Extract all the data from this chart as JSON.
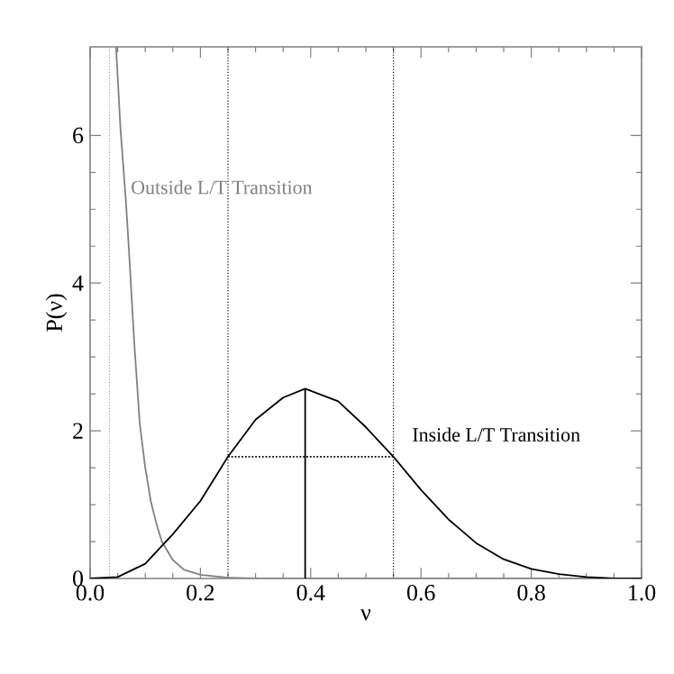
{
  "chart_data": {
    "type": "line",
    "xlabel": "ν",
    "ylabel": "P(ν)",
    "xlim": [
      0,
      1
    ],
    "ylim": [
      0,
      7.2
    ],
    "xticks": [
      {
        "value": 0,
        "label": "0.0"
      },
      {
        "value": 0.2,
        "label": "0.2"
      },
      {
        "value": 0.4,
        "label": "0.4"
      },
      {
        "value": 0.6,
        "label": "0.6"
      },
      {
        "value": 0.8,
        "label": "0.8"
      },
      {
        "value": 1,
        "label": "1.0"
      }
    ],
    "yticks": [
      0,
      2,
      4,
      6
    ],
    "grid": false,
    "legend": false,
    "marker": "none",
    "series": [
      {
        "name": "Outside L/T Transition",
        "color": "#808080",
        "line_style": "solid",
        "x": [
          0.047,
          0.05,
          0.055,
          0.06,
          0.065,
          0.07,
          0.08,
          0.09,
          0.1,
          0.11,
          0.12,
          0.13,
          0.15,
          0.17,
          0.2,
          0.25,
          0.3,
          0.4,
          0.6,
          0.8,
          1.0
        ],
        "values": [
          7.2,
          6.8,
          6.1,
          5.6,
          5.1,
          4.5,
          3.2,
          2.1,
          1.5,
          1.05,
          0.75,
          0.5,
          0.25,
          0.12,
          0.05,
          0.01,
          0.0,
          0.0,
          0.0,
          0.0,
          0.0
        ]
      },
      {
        "name": "Inside L/T Transition",
        "color": "#000000",
        "line_style": "solid",
        "x": [
          0.0,
          0.05,
          0.1,
          0.13,
          0.15,
          0.2,
          0.25,
          0.3,
          0.35,
          0.39,
          0.45,
          0.5,
          0.55,
          0.6,
          0.65,
          0.7,
          0.75,
          0.8,
          0.85,
          0.9,
          0.95,
          1.0
        ],
        "values": [
          0.0,
          0.02,
          0.2,
          0.44,
          0.6,
          1.05,
          1.65,
          2.15,
          2.45,
          2.57,
          2.4,
          2.05,
          1.65,
          1.2,
          0.8,
          0.48,
          0.26,
          0.13,
          0.06,
          0.02,
          0.0,
          0.0
        ]
      },
      {
        "color": "#000000",
        "line_style": "solid",
        "x": [
          0.39,
          0.39
        ],
        "values": [
          0,
          2.57
        ]
      },
      {
        "color": "#000000",
        "line_style": "dotted",
        "x": [
          0.25,
          0.55
        ],
        "values": [
          1.65,
          1.65
        ]
      }
    ],
    "ref_lines": [
      {
        "axis": "x",
        "value": 0.035,
        "color": "#a0a0a0",
        "line_style": "dotted"
      },
      {
        "axis": "x",
        "value": 0.25,
        "color": "#000000",
        "line_style": "dotted"
      },
      {
        "axis": "x",
        "value": 0.55,
        "color": "#000000",
        "line_style": "dotted"
      }
    ]
  }
}
